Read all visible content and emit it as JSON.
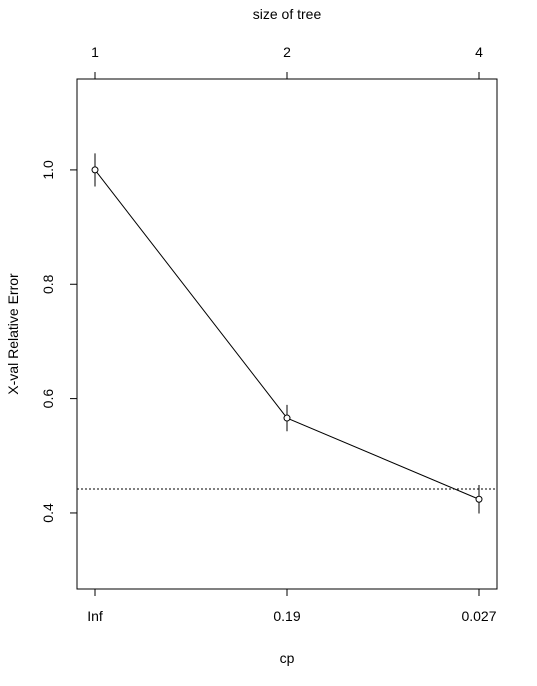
{
  "chart_data": {
    "type": "line",
    "top_axis_label": "size of tree",
    "top_categories": [
      "1",
      "2",
      "4"
    ],
    "x_label": "cp",
    "y_label": "X-val Relative Error",
    "categories": [
      "Inf",
      "0.19",
      "0.027"
    ],
    "values": [
      1.0,
      0.566,
      0.424
    ],
    "errors": [
      0.029,
      0.023,
      0.025
    ],
    "reference_line": 0.442,
    "color": "#000000",
    "ylim": [
      0.267,
      1.159
    ],
    "yticks": [
      0.4,
      0.6,
      0.8,
      {
        "value": 1.0,
        "label": "1.0"
      }
    ]
  }
}
